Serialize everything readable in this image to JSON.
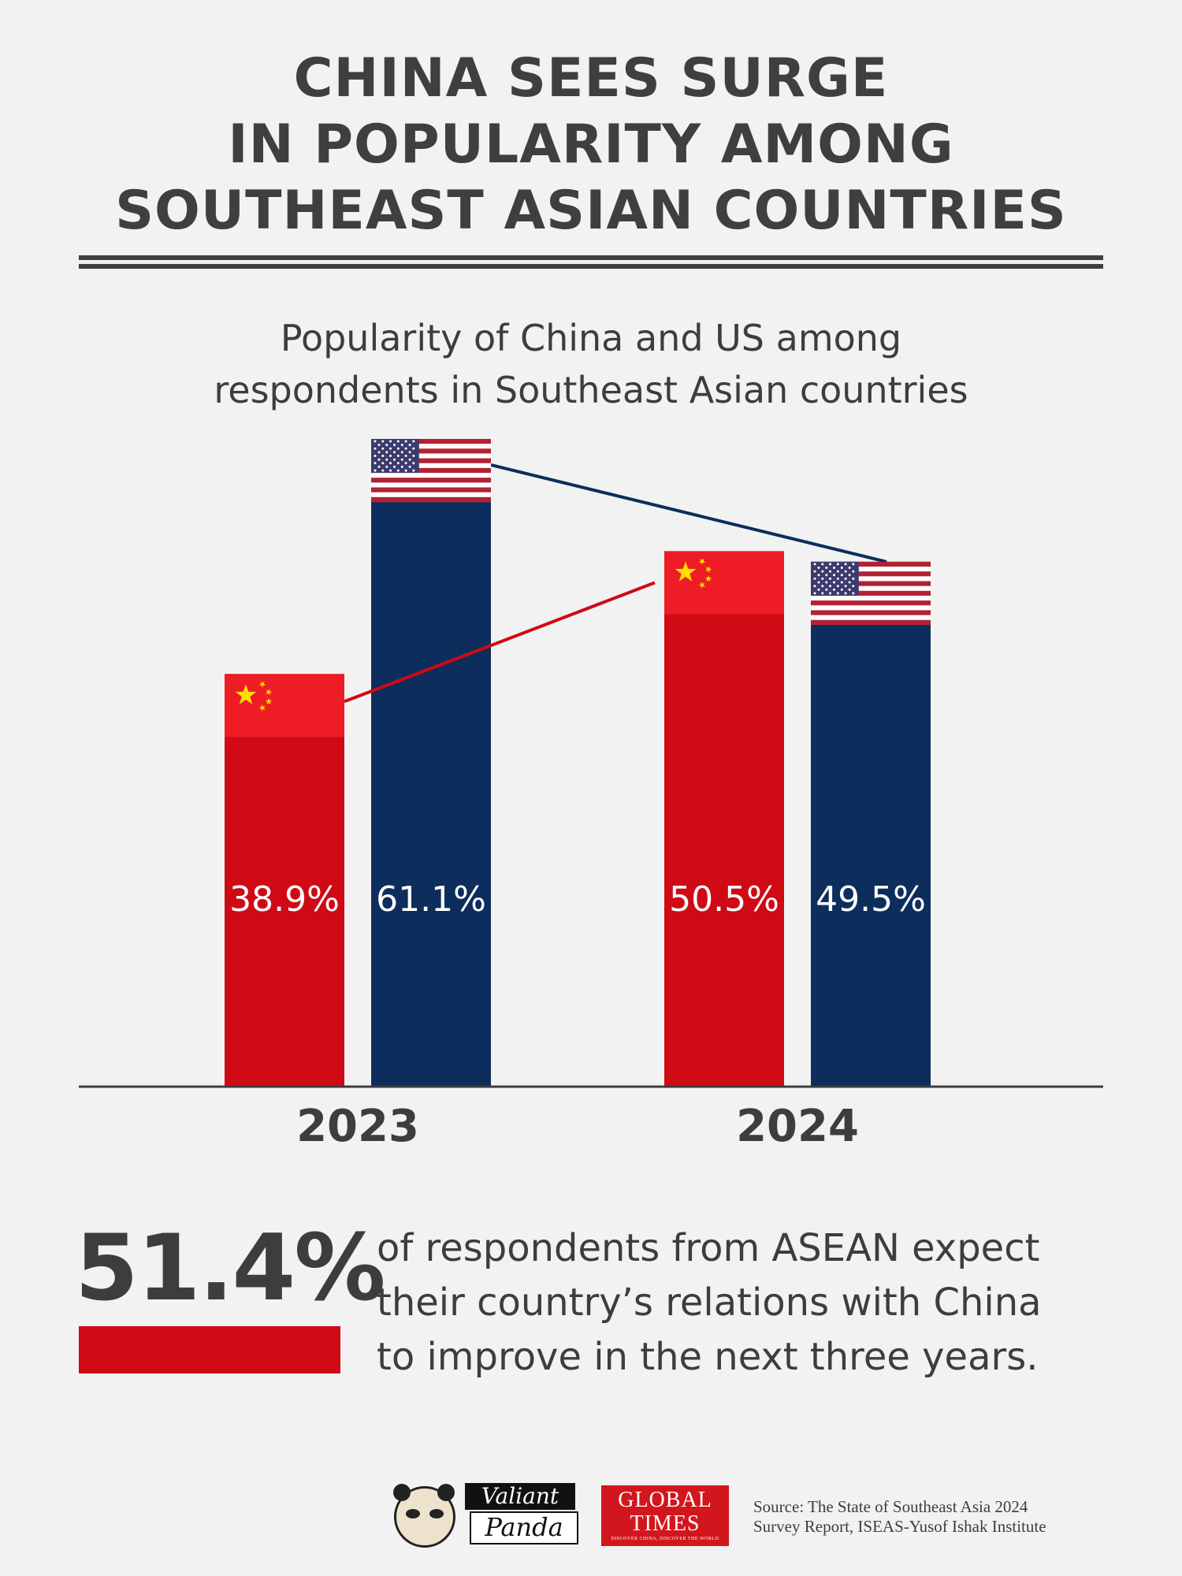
{
  "title": {
    "line1": "CHINA SEES SURGE",
    "line2": "IN POPULARITY AMONG",
    "line3": "SOUTHEAST ASIAN COUNTRIES"
  },
  "chart_data": {
    "type": "bar",
    "title": "Popularity of China and US among respondents in Southeast Asian countries",
    "title_line1": "Popularity of China and US among",
    "title_line2": "respondents in Southeast Asian countries",
    "categories": [
      "2023",
      "2024"
    ],
    "series": [
      {
        "name": "China",
        "color": "#cf0a15",
        "flag_color": "#ee1c25",
        "values": [
          38.9,
          50.5
        ],
        "labels": [
          "38.9%",
          "50.5%"
        ]
      },
      {
        "name": "US",
        "color": "#0d2d5c",
        "values": [
          61.1,
          49.5
        ],
        "labels": [
          "61.1%",
          "49.5%"
        ]
      }
    ],
    "ylim": [
      0,
      61.1
    ],
    "xlabel": "",
    "ylabel": "",
    "trend_lines": true
  },
  "stat": {
    "value": "51.4%",
    "color": "#cf0a15",
    "text_line1": "of respondents from ASEAN expect",
    "text_line2": "their country’s relations with China",
    "text_line3": "to improve in the next three years."
  },
  "logos": {
    "panda_line1": "Valiant",
    "panda_line2": "Panda",
    "gt_line1": "GLOBAL",
    "gt_line2": "TIMES",
    "gt_tagline": "DISCOVER CHINA, DISCOVER THE WORLD"
  },
  "source": {
    "line1": "Source: The State of Southeast Asia 2024",
    "line2": "Survey Report, ISEAS-Yusof Ishak Institute"
  }
}
